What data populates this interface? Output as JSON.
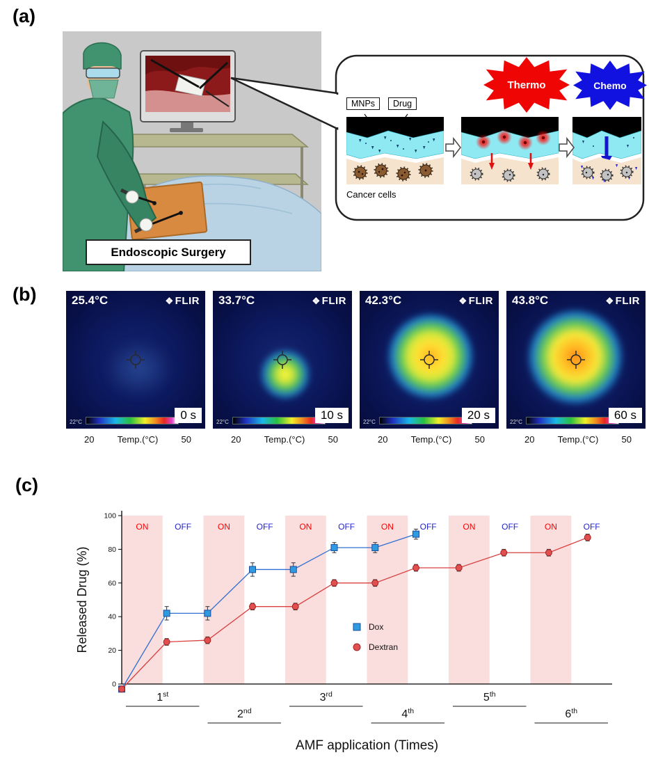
{
  "figure_labels": {
    "a": "(a)",
    "b": "(b)",
    "c": "(c)"
  },
  "panel_a": {
    "surgery_label": "Endoscopic Surgery",
    "mnps_label": "MNPs",
    "drug_label": "Drug",
    "thermo_label": "Thermo",
    "chemo_label": "Chemo",
    "cancer_cells_label": "Cancer cells"
  },
  "panel_b": {
    "flir_icon": "❖",
    "flir_text": "FLIR",
    "axis": {
      "min": "20",
      "label": "Temp.(°C)",
      "max": "50"
    },
    "images": [
      {
        "temp": "25.4°C",
        "time": "0 s",
        "scale_label": "22°C"
      },
      {
        "temp": "33.7°C",
        "time": "10 s",
        "scale_label": "22°C"
      },
      {
        "temp": "42.3°C",
        "time": "20 s",
        "scale_label": "22°C"
      },
      {
        "temp": "43.8°C",
        "time": "60 s",
        "scale_label": "22°C"
      }
    ]
  },
  "chart_data": {
    "type": "line",
    "title": "",
    "xlabel": "AMF application (Times)",
    "ylabel": "Released Drug (%)",
    "ylim": [
      0,
      100
    ],
    "y_ticks": [
      0,
      20,
      40,
      60,
      80,
      100
    ],
    "x_axis_note": "x in alternating AMF ON/OFF half-cycle units; 12 bands = 6 ON/OFF cycles",
    "bands": {
      "count": 12,
      "pattern": [
        "ON",
        "OFF"
      ],
      "on_fill": "#fadddd",
      "on_label_color": "#ff0000",
      "off_label_color": "#2222cc"
    },
    "x_ticks": [
      {
        "base": "1",
        "sup": "st"
      },
      {
        "base": "2",
        "sup": "nd"
      },
      {
        "base": "3",
        "sup": "rd"
      },
      {
        "base": "4",
        "sup": "th"
      },
      {
        "base": "5",
        "sup": "th"
      },
      {
        "base": "6",
        "sup": "th"
      }
    ],
    "series": [
      {
        "name": "Dox",
        "marker": "square",
        "color": "#2f6fd0",
        "marker_fill": "#2f9ae0",
        "marker_edge": "#1a4e9c",
        "x": [
          0,
          1.1,
          2.1,
          3.2,
          4.2,
          5.2,
          6.2,
          7.2
        ],
        "y": [
          -3,
          42,
          42,
          68,
          68,
          81,
          81,
          89
        ],
        "yerr": [
          0,
          4,
          4,
          4,
          4,
          3,
          3,
          3
        ]
      },
      {
        "name": "Dextran",
        "marker": "circle",
        "color": "#d94040",
        "marker_fill": "#e05050",
        "marker_edge": "#a02020",
        "x": [
          0,
          1.1,
          2.1,
          3.2,
          4.25,
          5.2,
          6.2,
          7.2,
          8.25,
          9.35,
          10.45,
          11.4
        ],
        "y": [
          -3,
          25,
          26,
          46,
          46,
          60,
          60,
          69,
          69,
          78,
          78,
          87
        ],
        "yerr": [
          0,
          2,
          2,
          2,
          2,
          2,
          2,
          2,
          2,
          2,
          2,
          2
        ]
      }
    ],
    "legend": {
      "position": "inside-center-right",
      "entries": [
        "Dox",
        "Dextran"
      ]
    }
  }
}
